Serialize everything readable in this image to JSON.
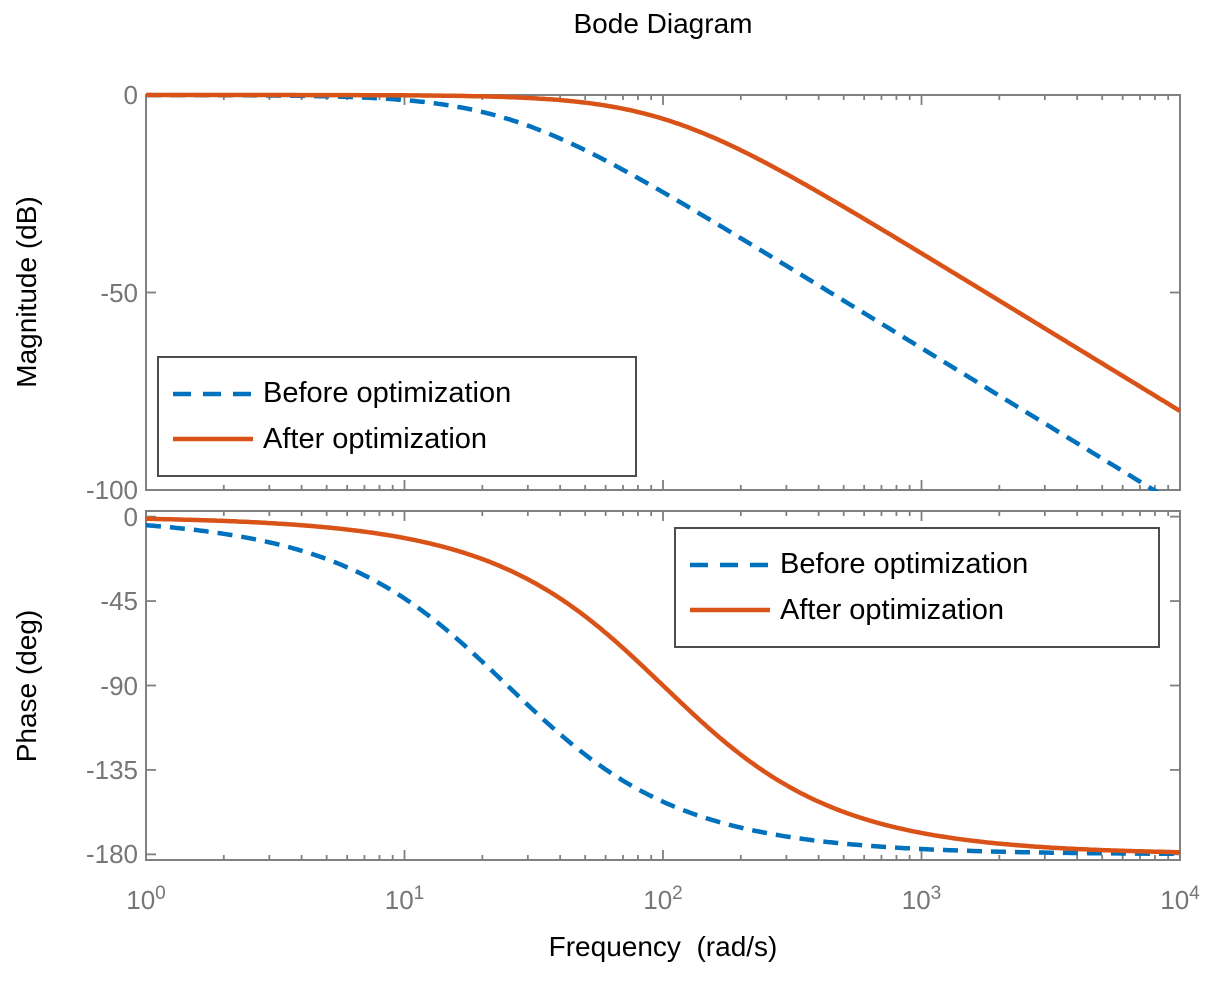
{
  "figure": {
    "title": "Bode Diagram",
    "background": "#ffffff"
  },
  "colors": {
    "before": "#0072BD",
    "after": "#D95319",
    "axis_frame": "#808080",
    "tick_text": "#767676",
    "label_text": "#000000",
    "legend_border": "#4d4d4d",
    "legend_bg": "#ffffff"
  },
  "xaxis": {
    "label": "Frequency  (rad/s)",
    "scale": "log",
    "tick_exponents": [
      0,
      1,
      2,
      3,
      4
    ],
    "minor_mantissas": [
      2,
      3,
      4,
      5,
      6,
      7,
      8,
      9
    ],
    "lim_exponents": [
      0,
      4
    ]
  },
  "magnitude_plot": {
    "ylabel": "Magnitude (dB)",
    "yticks": [
      0,
      -50,
      -100
    ],
    "ylim": [
      0,
      -100
    ]
  },
  "phase_plot": {
    "ylabel": "Phase (deg)",
    "yticks": [
      0,
      -45,
      -90,
      -135,
      -180
    ],
    "ylim": [
      3,
      -183
    ]
  },
  "legend": {
    "items": [
      {
        "label": "Before optimization",
        "style": "dashed",
        "color": "#0072BD"
      },
      {
        "label": "After optimization",
        "style": "solid",
        "color": "#D95319"
      }
    ]
  },
  "chart_data": [
    {
      "type": "line",
      "title": "Bode Diagram",
      "subplot": "magnitude",
      "quantity": "magnitude_db",
      "xlabel": "Frequency (rad/s)",
      "ylabel": "Magnitude (dB)",
      "xscale": "log",
      "xlim": [
        1,
        10000
      ],
      "ylim": [
        -100,
        0
      ],
      "yticks": [
        0,
        -50,
        -100
      ],
      "grid": false,
      "legend_position": "bottom-left",
      "x": [
        1,
        3.16,
        10,
        31.6,
        100,
        316,
        1000,
        3162,
        10000
      ],
      "series": [
        {
          "name": "Before optimization",
          "color": "#0072BD",
          "line": "dashed",
          "model": {
            "kind": "double_pole",
            "w0": 25
          },
          "values": [
            -0.01,
            -0.14,
            -1.3,
            -8.3,
            -24.6,
            -44.1,
            -64.1,
            -84.1,
            -104.1
          ]
        },
        {
          "name": "After optimization",
          "color": "#D95319",
          "line": "solid",
          "model": {
            "kind": "double_pole",
            "w0": 100
          },
          "values": [
            0,
            -0.01,
            -0.04,
            -0.41,
            -3.0,
            -20.8,
            -40.0,
            -60.0,
            -80.0
          ]
        }
      ]
    },
    {
      "type": "line",
      "title": "Bode Diagram",
      "subplot": "phase",
      "quantity": "phase_deg",
      "xlabel": "Frequency (rad/s)",
      "ylabel": "Phase (deg)",
      "xscale": "log",
      "xlim": [
        1,
        10000
      ],
      "ylim": [
        -180,
        0
      ],
      "yticks": [
        0,
        -45,
        -90,
        -135,
        -180
      ],
      "grid": false,
      "legend_position": "top-right",
      "x": [
        1,
        3.16,
        10,
        31.6,
        100,
        316,
        1000,
        3162,
        10000
      ],
      "series": [
        {
          "name": "Before optimization",
          "color": "#0072BD",
          "line": "dashed",
          "model": {
            "kind": "double_pole",
            "w0": 25
          },
          "values": [
            -4.6,
            -14.4,
            -43.6,
            -103.3,
            -151.9,
            -171.0,
            -177.1,
            -179.1,
            -179.7
          ]
        },
        {
          "name": "After optimization",
          "color": "#D95319",
          "line": "solid",
          "model": {
            "kind": "double_pole",
            "w0": 100
          },
          "values": [
            -1.1,
            -3.6,
            -11.4,
            -35.1,
            -90.0,
            -144.9,
            -168.6,
            -176.4,
            -178.9
          ]
        }
      ]
    }
  ]
}
